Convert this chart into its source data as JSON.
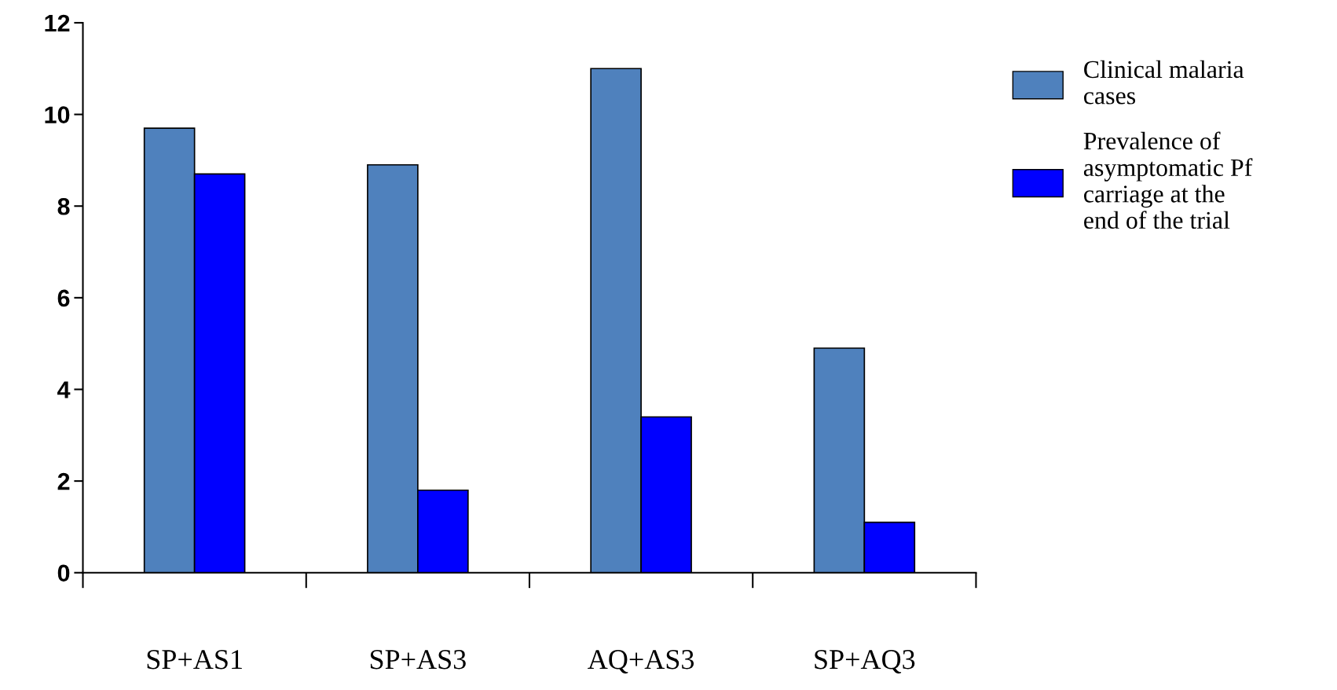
{
  "chart_data": {
    "type": "bar",
    "categories": [
      "SP+AS1",
      "SP+AS3",
      "AQ+AS3",
      "SP+AQ3"
    ],
    "series": [
      {
        "name": "Clinical malaria cases",
        "color": "#4f81bd",
        "values": [
          9.7,
          8.9,
          11.0,
          4.9
        ]
      },
      {
        "name": "Prevalence of asymptomatic Pf carriage at the end of the trial",
        "color": "#0000ff",
        "values": [
          8.7,
          1.8,
          3.4,
          1.1
        ]
      }
    ],
    "ylim": [
      0,
      12
    ],
    "yticks": [
      0,
      2,
      4,
      6,
      8,
      10,
      12
    ],
    "grid": false,
    "legend": "right"
  }
}
